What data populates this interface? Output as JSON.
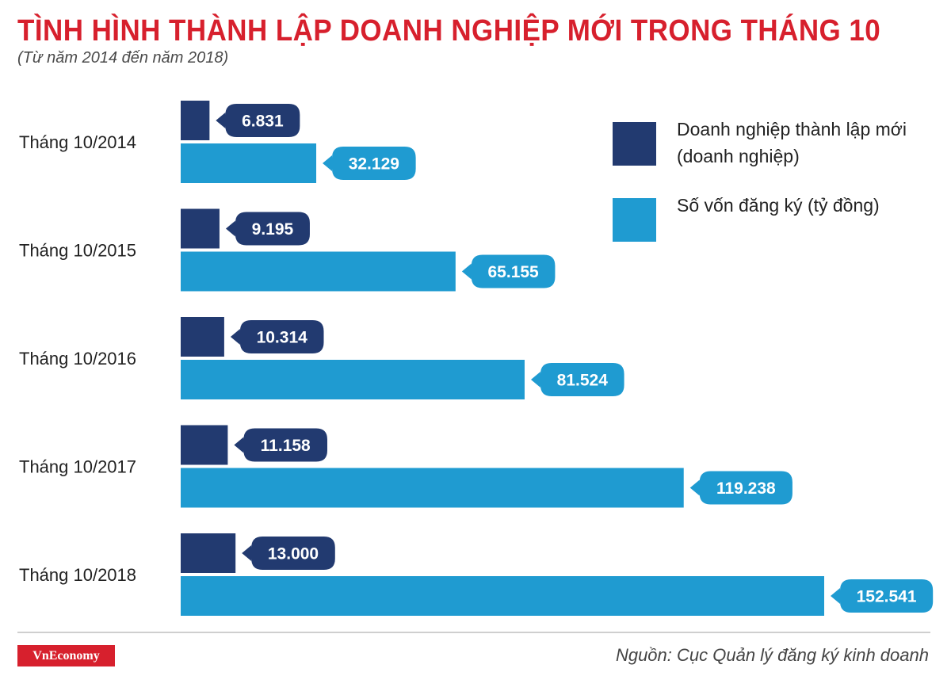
{
  "header": {
    "title": "TÌNH HÌNH THÀNH LẬP DOANH NGHIỆP MỚI TRONG THÁNG 10",
    "subtitle": "(Từ năm 2014 đến năm 2018)"
  },
  "legend": {
    "items": [
      {
        "label": "Doanh nghiệp thành lập mới (doanh nghiệp)",
        "color": "#223a70"
      },
      {
        "label": "Số vốn đăng ký (tỷ đồng)",
        "color": "#1f9bd1"
      }
    ]
  },
  "colors": {
    "title": "#d7202d",
    "series_dark": "#223a70",
    "series_light": "#1f9bd1",
    "brand": "#d7202d"
  },
  "chart_data": {
    "type": "bar",
    "orientation": "horizontal",
    "categories": [
      "Tháng 10/2014",
      "Tháng 10/2015",
      "Tháng 10/2016",
      "Tháng 10/2017",
      "Tháng 10/2018"
    ],
    "series": [
      {
        "name": "Doanh nghiệp thành lập mới (doanh nghiệp)",
        "values": [
          6831,
          9195,
          10314,
          11158,
          13000
        ],
        "labels": [
          "6.831",
          "9.195",
          "10.314",
          "11.158",
          "13.000"
        ],
        "color": "#223a70"
      },
      {
        "name": "Số vốn đăng ký (tỷ đồng)",
        "values": [
          32129,
          65155,
          81524,
          119238,
          152541
        ],
        "labels": [
          "32.129",
          "65.155",
          "81.524",
          "119.238",
          "152.541"
        ],
        "color": "#1f9bd1"
      }
    ],
    "grid": false,
    "legend_position": "top-right"
  },
  "footer": {
    "brand": "VnEconomy",
    "source": "Nguồn: Cục Quản lý đăng ký kinh doanh"
  }
}
